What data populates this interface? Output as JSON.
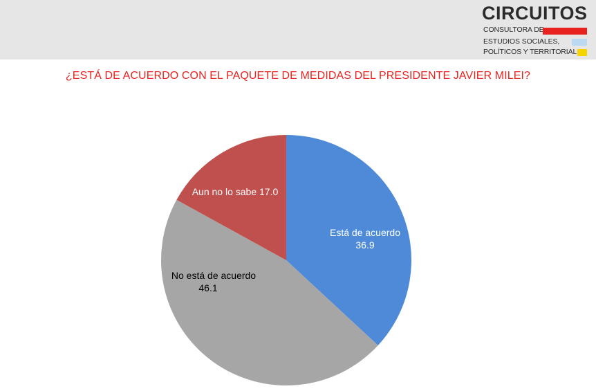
{
  "header": {
    "logo": {
      "title": "CIRCUITOS",
      "line1": "CONSULTORA DE",
      "line2": "ESTUDIOS SOCIALES,",
      "line3": "POLÍTICOS Y TERRITORIALES",
      "accent_colors": [
        "#e8231f",
        "#bcd9f2",
        "#f5d400"
      ]
    }
  },
  "chart_data": {
    "type": "pie",
    "title": "¿ESTÁ DE ACUERDO CON EL PAQUETE DE MEDIDAS DEL PRESIDENTE JAVIER MILEI?",
    "slices": [
      {
        "label": "Está de acuerdo",
        "value": 36.9,
        "color": "#4e8ad8",
        "label_color": "#ffffff"
      },
      {
        "label": "No está de acuerdo",
        "value": 46.1,
        "color": "#a6a6a6",
        "label_color": "#000000"
      },
      {
        "label": "Aun no lo sabe",
        "value": 17.0,
        "color": "#c0504d",
        "label_color": "#ffffff"
      }
    ],
    "start": "12 o'clock",
    "direction": "clockwise",
    "legend": "none"
  }
}
